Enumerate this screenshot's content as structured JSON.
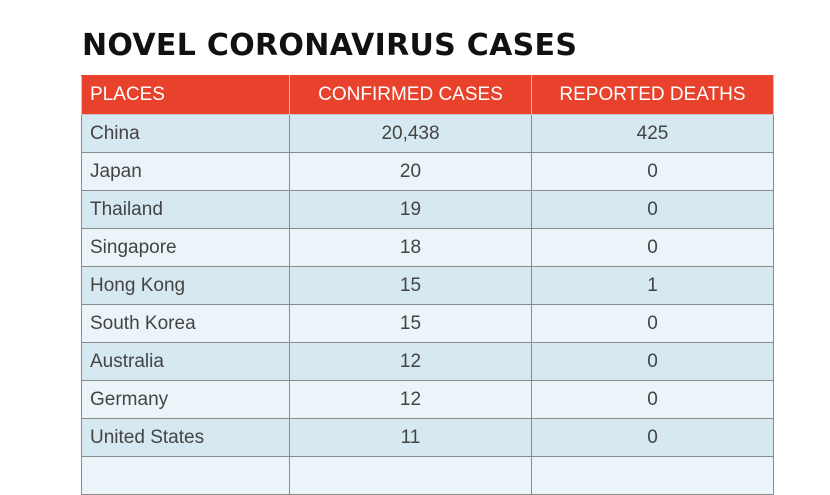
{
  "title": "NOVEL CORONAVIRUS CASES",
  "table": {
    "headers": [
      "PLACES",
      "CONFIRMED CASES",
      "REPORTED DEATHS"
    ],
    "rows": [
      {
        "place": "China",
        "confirmed": "20,438",
        "deaths": "425"
      },
      {
        "place": "Japan",
        "confirmed": "20",
        "deaths": "0"
      },
      {
        "place": "Thailand",
        "confirmed": "19",
        "deaths": "0"
      },
      {
        "place": "Singapore",
        "confirmed": "18",
        "deaths": "0"
      },
      {
        "place": "Hong Kong",
        "confirmed": "15",
        "deaths": "1"
      },
      {
        "place": "South Korea",
        "confirmed": "15",
        "deaths": "0"
      },
      {
        "place": "Australia",
        "confirmed": "12",
        "deaths": "0"
      },
      {
        "place": "Germany",
        "confirmed": "12",
        "deaths": "0"
      },
      {
        "place": "United States",
        "confirmed": "11",
        "deaths": "0"
      }
    ]
  },
  "colors": {
    "header_background": "#e8412c",
    "header_text": "#ffffff",
    "row_stripe_dark": "#d6e9f1",
    "row_stripe_light": "#ebf5f9",
    "title_text": "#111111"
  }
}
